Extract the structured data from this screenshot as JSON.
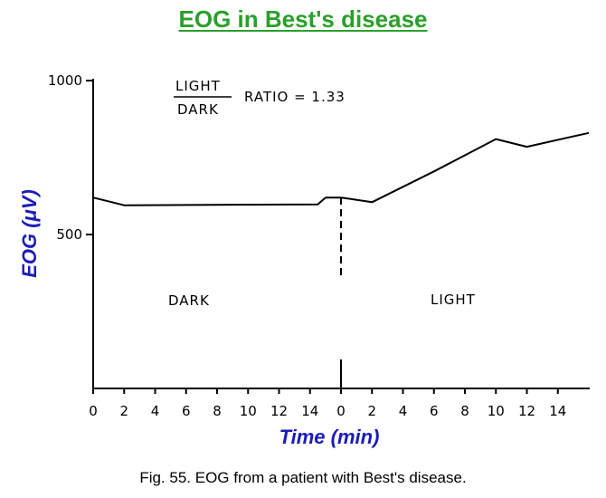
{
  "colors": {
    "title": "#2aa02a",
    "axis_title": "#1c1cb8",
    "ink": "#000000"
  },
  "title": "EOG in Best's disease",
  "caption": "Fig. 55. EOG from a patient with Best's disease.",
  "chart_data": {
    "type": "line",
    "title": "EOG in Best's disease",
    "xlabel": "Time (min)",
    "ylabel": "EOG (μV)",
    "ylim": [
      0,
      1000
    ],
    "yticks": [
      500,
      1000
    ],
    "grid": false,
    "annotations": {
      "ratio_numerator": "LIGHT",
      "ratio_denominator": "DARK",
      "ratio_text": "RATIO = 1.33",
      "phase_dark": "DARK",
      "phase_light": "LIGHT"
    },
    "phases": [
      {
        "name": "DARK",
        "xticks": [
          "0",
          "2",
          "4",
          "6",
          "8",
          "10",
          "12",
          "14"
        ],
        "x": [
          0,
          2,
          14.5,
          15
        ],
        "y": [
          620,
          595,
          598,
          620
        ]
      },
      {
        "name": "LIGHT",
        "xticks": [
          "0",
          "2",
          "4",
          "6",
          "8",
          "10",
          "12",
          "14"
        ],
        "x": [
          0,
          2,
          6,
          10,
          12,
          16
        ],
        "y": [
          620,
          605,
          705,
          810,
          785,
          830
        ]
      }
    ]
  }
}
